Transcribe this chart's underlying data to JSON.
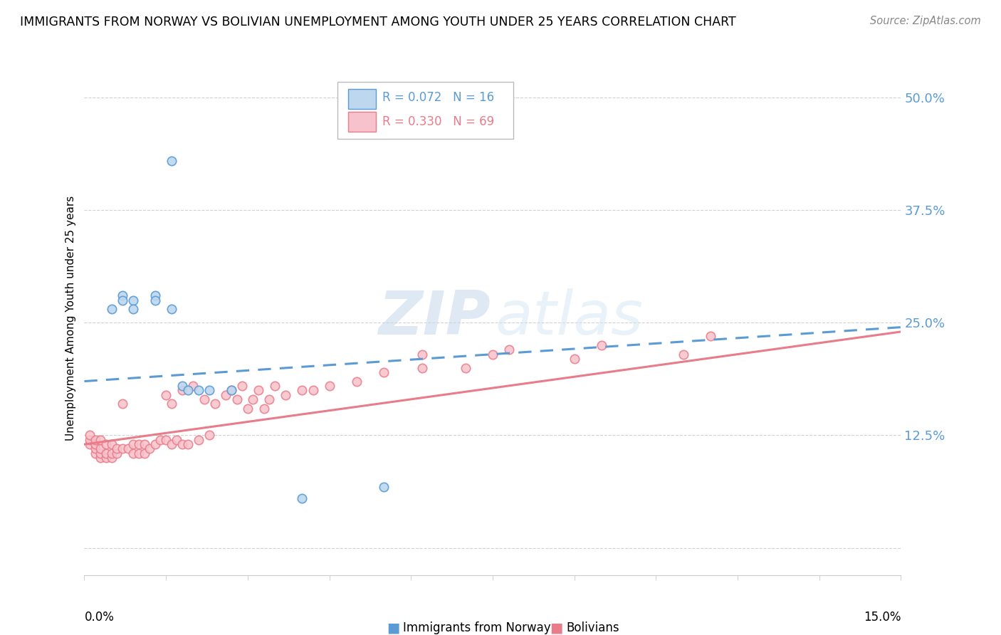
{
  "title": "IMMIGRANTS FROM NORWAY VS BOLIVIAN UNEMPLOYMENT AMONG YOUTH UNDER 25 YEARS CORRELATION CHART",
  "source": "Source: ZipAtlas.com",
  "ylabel": "Unemployment Among Youth under 25 years",
  "ytick_vals": [
    0.0,
    0.125,
    0.25,
    0.375,
    0.5
  ],
  "ytick_labels": [
    "",
    "12.5%",
    "25.0%",
    "37.5%",
    "50.0%"
  ],
  "xlim": [
    0.0,
    0.15
  ],
  "ylim": [
    -0.03,
    0.54
  ],
  "legend1_r": "0.072",
  "legend1_n": "16",
  "legend2_r": "0.330",
  "legend2_n": "69",
  "blue_color": "#5b9bd5",
  "blue_fill": "#bdd7ee",
  "pink_color": "#e87c8a",
  "pink_fill": "#f7c2cb",
  "norway_x": [
    0.005,
    0.007,
    0.007,
    0.009,
    0.009,
    0.013,
    0.013,
    0.016,
    0.016,
    0.018,
    0.019,
    0.021,
    0.023,
    0.027,
    0.04,
    0.055
  ],
  "norway_y": [
    0.265,
    0.28,
    0.275,
    0.275,
    0.265,
    0.28,
    0.275,
    0.43,
    0.265,
    0.18,
    0.175,
    0.175,
    0.175,
    0.175,
    0.055,
    0.068
  ],
  "bolivia_x": [
    0.001,
    0.001,
    0.001,
    0.002,
    0.002,
    0.002,
    0.002,
    0.003,
    0.003,
    0.003,
    0.003,
    0.004,
    0.004,
    0.004,
    0.005,
    0.005,
    0.005,
    0.006,
    0.006,
    0.007,
    0.007,
    0.008,
    0.009,
    0.009,
    0.01,
    0.01,
    0.011,
    0.011,
    0.012,
    0.013,
    0.014,
    0.015,
    0.015,
    0.016,
    0.016,
    0.017,
    0.018,
    0.018,
    0.019,
    0.02,
    0.021,
    0.022,
    0.023,
    0.024,
    0.026,
    0.027,
    0.028,
    0.029,
    0.03,
    0.031,
    0.032,
    0.033,
    0.034,
    0.035,
    0.037,
    0.04,
    0.042,
    0.045,
    0.05,
    0.055,
    0.062,
    0.062,
    0.07,
    0.075,
    0.078,
    0.09,
    0.095,
    0.11,
    0.115
  ],
  "bolivia_y": [
    0.115,
    0.12,
    0.125,
    0.105,
    0.11,
    0.115,
    0.12,
    0.1,
    0.105,
    0.11,
    0.12,
    0.1,
    0.105,
    0.115,
    0.1,
    0.105,
    0.115,
    0.105,
    0.11,
    0.11,
    0.16,
    0.11,
    0.105,
    0.115,
    0.105,
    0.115,
    0.105,
    0.115,
    0.11,
    0.115,
    0.12,
    0.12,
    0.17,
    0.115,
    0.16,
    0.12,
    0.115,
    0.175,
    0.115,
    0.18,
    0.12,
    0.165,
    0.125,
    0.16,
    0.17,
    0.175,
    0.165,
    0.18,
    0.155,
    0.165,
    0.175,
    0.155,
    0.165,
    0.18,
    0.17,
    0.175,
    0.175,
    0.18,
    0.185,
    0.195,
    0.2,
    0.215,
    0.2,
    0.215,
    0.22,
    0.21,
    0.225,
    0.215,
    0.235
  ],
  "norway_trendline": [
    0.185,
    0.245
  ],
  "bolivia_trendline": [
    0.115,
    0.24
  ],
  "watermark_zip_color": "#c8d8e8",
  "watermark_atlas_color": "#c8d8e8"
}
